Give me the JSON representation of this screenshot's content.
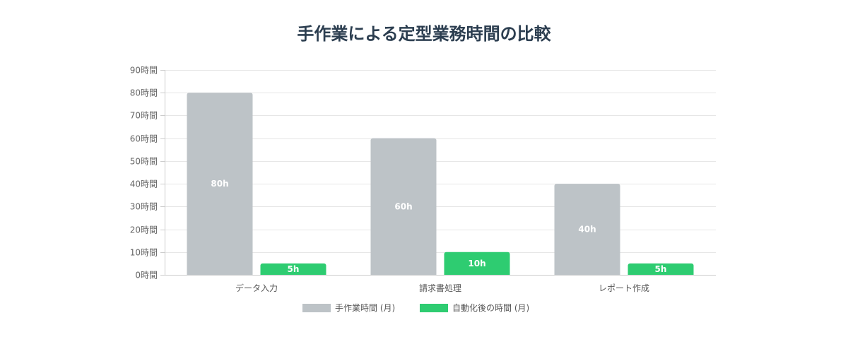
{
  "chart_data": {
    "type": "bar",
    "title": "手作業による定型業務時間の比較",
    "categories": [
      "データ入力",
      "請求書処理",
      "レポート作成"
    ],
    "series": [
      {
        "name": "手作業時間 (月)",
        "values": [
          80,
          60,
          40
        ],
        "labels": [
          "80h",
          "60h",
          "40h"
        ],
        "color": "#bdc3c7"
      },
      {
        "name": "自動化後の時間 (月)",
        "values": [
          5,
          10,
          5
        ],
        "labels": [
          "5h",
          "10h",
          "5h"
        ],
        "color": "#2ecc71"
      }
    ],
    "ylim": [
      0,
      90
    ],
    "yticks": [
      "0時間",
      "10時間",
      "20時間",
      "30時間",
      "40時間",
      "50時間",
      "60時間",
      "70時間",
      "80時間",
      "90時間"
    ],
    "grid": true,
    "legend": "bottom",
    "gridColor": "#e6e6e6"
  }
}
